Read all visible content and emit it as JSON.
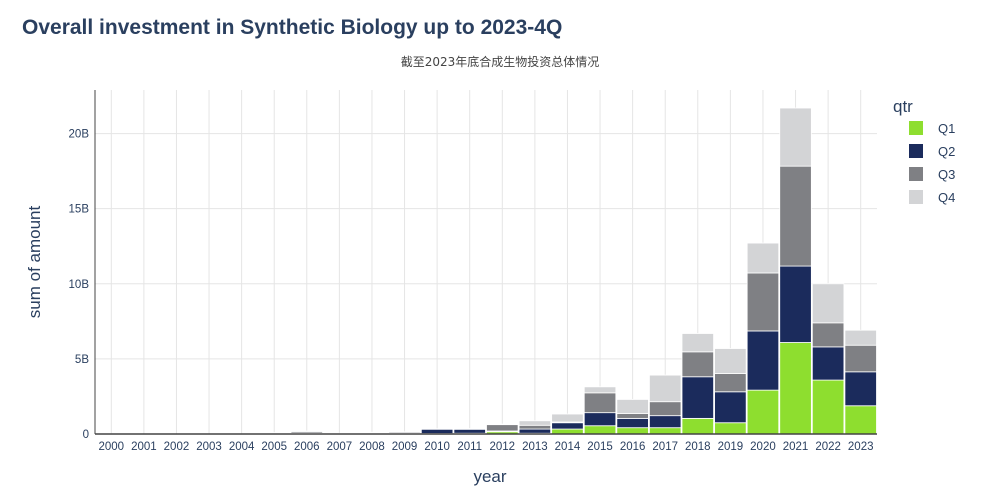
{
  "chart_data": {
    "type": "bar",
    "stacked": true,
    "title": "Overall investment in Synthetic Biology up to 2023-4Q",
    "subtitle": "截至2023年底合成生物投资总体情况",
    "xlabel": "year",
    "ylabel": "sum of amount",
    "ylim": [
      0,
      22.9
    ],
    "yticks": [
      0,
      5,
      10,
      15,
      20
    ],
    "ytick_labels": [
      "0",
      "5B",
      "10B",
      "15B",
      "20B"
    ],
    "grid": true,
    "legend_title": "qtr",
    "legend_position": "right",
    "categories": [
      "2000",
      "2001",
      "2002",
      "2003",
      "2004",
      "2005",
      "2006",
      "2007",
      "2008",
      "2009",
      "2010",
      "2011",
      "2012",
      "2013",
      "2014",
      "2015",
      "2016",
      "2017",
      "2018",
      "2019",
      "2020",
      "2021",
      "2022",
      "2023"
    ],
    "series": [
      {
        "name": "Q1",
        "color": "#8ede2f",
        "values": [
          0,
          0,
          0,
          0,
          0,
          0.08,
          0.02,
          0.01,
          0.02,
          0.02,
          0.03,
          0.05,
          0.15,
          0.05,
          0.33,
          0.55,
          0.42,
          0.42,
          1.04,
          0.75,
          2.92,
          6.09,
          3.59,
          1.88
        ]
      },
      {
        "name": "Q2",
        "color": "#1b2b5c",
        "values": [
          0,
          0,
          0,
          0,
          0,
          0,
          0.02,
          0.01,
          0.03,
          0.01,
          0.3,
          0.28,
          0.05,
          0.28,
          0.42,
          0.87,
          0.62,
          0.8,
          2.77,
          2.06,
          3.94,
          5.09,
          2.21,
          2.26
        ]
      },
      {
        "name": "Q3",
        "color": "#7f8084",
        "values": [
          0,
          0,
          0,
          0,
          0,
          0,
          0.1,
          0.02,
          0.06,
          0.02,
          0.02,
          0.02,
          0.45,
          0.25,
          0.05,
          1.32,
          0.33,
          0.93,
          1.66,
          1.22,
          3.86,
          6.65,
          1.6,
          1.77
        ]
      },
      {
        "name": "Q4",
        "color": "#d3d4d6",
        "values": [
          0,
          0,
          0,
          0,
          0,
          0.01,
          0.06,
          0.01,
          0.01,
          0.1,
          0,
          0.01,
          0.01,
          0.3,
          0.53,
          0.4,
          0.93,
          1.77,
          1.22,
          1.66,
          1.99,
          3.87,
          2.6,
          1.0
        ]
      }
    ]
  }
}
